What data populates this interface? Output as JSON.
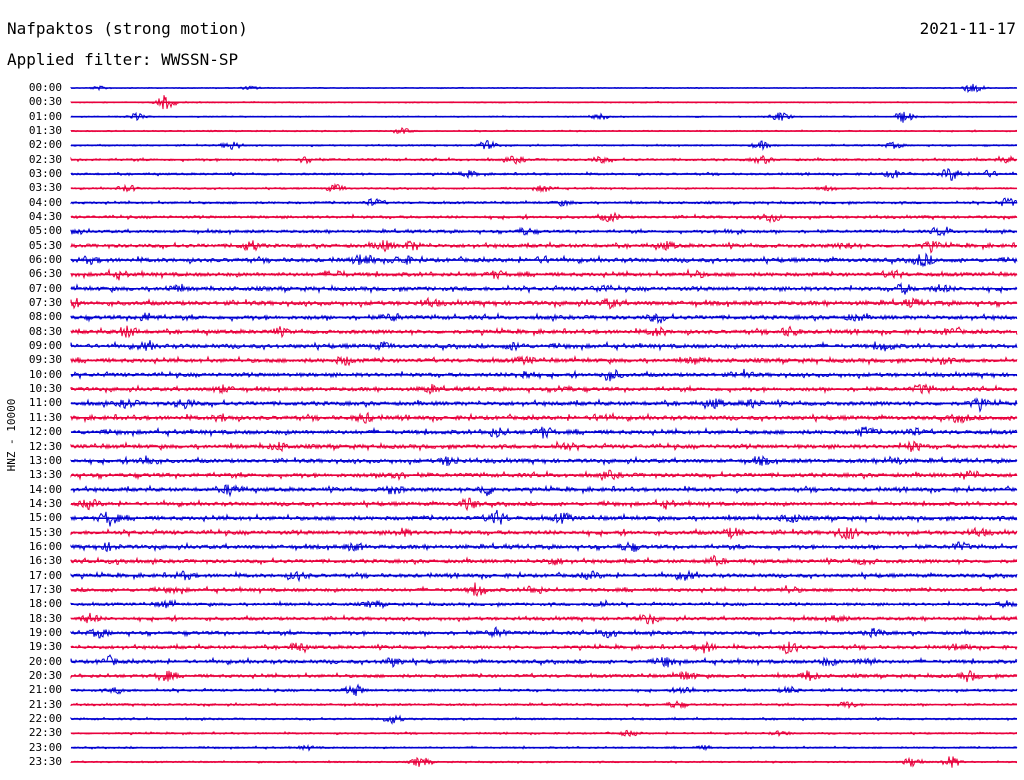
{
  "header": {
    "station": "Nafpaktos (strong motion)",
    "date": "2021-11-17",
    "filter": "Applied filter: WWSSN-SP"
  },
  "chart_data": {
    "type": "line",
    "channel_label": "HNZ - 10000",
    "trace_colors": [
      "#0000d0",
      "#e8003c"
    ],
    "rows": [
      "00:00",
      "00:30",
      "01:00",
      "01:30",
      "02:00",
      "02:30",
      "03:00",
      "03:30",
      "04:00",
      "04:30",
      "05:00",
      "05:30",
      "06:00",
      "06:30",
      "07:00",
      "07:30",
      "08:00",
      "08:30",
      "09:00",
      "09:30",
      "10:00",
      "10:30",
      "11:00",
      "11:30",
      "12:00",
      "12:30",
      "13:00",
      "13:30",
      "14:00",
      "14:30",
      "15:00",
      "15:30",
      "16:00",
      "16:30",
      "17:00",
      "17:30",
      "18:00",
      "18:30",
      "19:00",
      "19:30",
      "20:00",
      "20:30",
      "21:00",
      "21:30",
      "22:00",
      "22:30",
      "23:00",
      "23:30"
    ],
    "noise_level": [
      0.1,
      0.15,
      0.15,
      0.2,
      0.25,
      0.45,
      0.4,
      0.3,
      0.45,
      0.55,
      0.6,
      0.8,
      0.9,
      0.85,
      0.9,
      0.95,
      0.9,
      0.85,
      0.9,
      0.9,
      0.85,
      0.8,
      0.9,
      0.9,
      0.9,
      0.9,
      0.85,
      0.9,
      0.85,
      0.8,
      0.9,
      0.9,
      0.85,
      0.8,
      0.8,
      0.75,
      0.6,
      0.7,
      0.75,
      0.7,
      0.8,
      0.7,
      0.5,
      0.4,
      0.35,
      0.3,
      0.3,
      0.25
    ],
    "events": [
      [
        [
          0.03,
          0.3
        ],
        [
          0.19,
          0.3
        ],
        [
          0.95,
          0.7
        ],
        [
          0.96,
          0.4
        ]
      ],
      [
        [
          0.1,
          1.4
        ]
      ],
      [
        [
          0.07,
          0.6
        ],
        [
          0.56,
          0.5
        ],
        [
          0.75,
          0.9
        ],
        [
          0.88,
          1.1
        ]
      ],
      [
        [
          0.35,
          0.5
        ]
      ],
      [
        [
          0.17,
          0.8
        ],
        [
          0.44,
          0.8
        ],
        [
          0.73,
          0.7
        ],
        [
          0.87,
          0.5
        ]
      ],
      [
        [
          0.25,
          0.6
        ],
        [
          0.47,
          0.6
        ],
        [
          0.56,
          0.5
        ],
        [
          0.73,
          0.6
        ],
        [
          0.99,
          0.5
        ]
      ],
      [
        [
          0.42,
          0.5
        ],
        [
          0.87,
          0.7
        ],
        [
          0.93,
          1.2
        ],
        [
          0.97,
          0.6
        ]
      ],
      [
        [
          0.06,
          0.6
        ],
        [
          0.28,
          0.7
        ],
        [
          0.5,
          0.6
        ],
        [
          0.8,
          0.4
        ]
      ],
      [
        [
          0.32,
          0.7
        ],
        [
          0.52,
          0.4
        ],
        [
          0.99,
          0.8
        ]
      ],
      [
        [
          0.57,
          0.8
        ],
        [
          0.74,
          0.9
        ]
      ],
      [
        [
          0.0,
          0.6
        ],
        [
          0.48,
          0.6
        ],
        [
          0.7,
          0.5
        ],
        [
          0.92,
          0.7
        ]
      ],
      [
        [
          0.19,
          0.9
        ],
        [
          0.33,
          0.9
        ],
        [
          0.36,
          0.8
        ],
        [
          0.63,
          0.6
        ],
        [
          0.82,
          0.5
        ],
        [
          0.91,
          0.7
        ]
      ],
      [
        [
          0.02,
          0.5
        ],
        [
          0.31,
          1.0
        ],
        [
          0.35,
          0.8
        ],
        [
          0.5,
          0.5
        ],
        [
          0.9,
          1.1
        ]
      ],
      [
        [
          0.05,
          0.5
        ],
        [
          0.28,
          0.6
        ],
        [
          0.45,
          0.6
        ],
        [
          0.66,
          0.5
        ],
        [
          0.87,
          0.6
        ]
      ],
      [
        [
          0.11,
          0.5
        ],
        [
          0.56,
          0.5
        ],
        [
          0.88,
          0.8
        ],
        [
          0.92,
          0.6
        ]
      ],
      [
        [
          0.0,
          0.5
        ],
        [
          0.38,
          0.6
        ],
        [
          0.57,
          0.7
        ],
        [
          0.89,
          0.6
        ]
      ],
      [
        [
          0.08,
          0.7
        ],
        [
          0.34,
          0.6
        ],
        [
          0.62,
          0.7
        ],
        [
          0.83,
          0.5
        ]
      ],
      [
        [
          0.06,
          1.0
        ],
        [
          0.22,
          0.5
        ],
        [
          0.62,
          0.7
        ],
        [
          0.76,
          0.8
        ],
        [
          0.93,
          0.6
        ]
      ],
      [
        [
          0.08,
          0.6
        ],
        [
          0.33,
          0.5
        ],
        [
          0.47,
          0.6
        ],
        [
          0.86,
          0.7
        ]
      ],
      [
        [
          0.29,
          0.7
        ],
        [
          0.48,
          0.6
        ],
        [
          0.66,
          0.5
        ],
        [
          0.92,
          0.5
        ]
      ],
      [
        [
          0.48,
          0.7
        ],
        [
          0.57,
          1.0
        ],
        [
          0.71,
          0.5
        ]
      ],
      [
        [
          0.16,
          0.6
        ],
        [
          0.38,
          0.6
        ],
        [
          0.52,
          0.5
        ],
        [
          0.9,
          0.8
        ]
      ],
      [
        [
          0.06,
          0.7
        ],
        [
          0.12,
          0.9
        ],
        [
          0.68,
          0.7
        ],
        [
          0.72,
          0.6
        ],
        [
          0.96,
          0.8
        ]
      ],
      [
        [
          0.16,
          0.6
        ],
        [
          0.31,
          0.8
        ],
        [
          0.56,
          0.6
        ],
        [
          0.94,
          0.7
        ]
      ],
      [
        [
          0.45,
          0.8
        ],
        [
          0.5,
          0.9
        ],
        [
          0.84,
          0.8
        ],
        [
          0.89,
          0.7
        ]
      ],
      [
        [
          0.22,
          0.7
        ],
        [
          0.52,
          0.6
        ],
        [
          0.89,
          0.8
        ]
      ],
      [
        [
          0.08,
          0.9
        ],
        [
          0.4,
          0.8
        ],
        [
          0.73,
          0.6
        ],
        [
          0.87,
          0.7
        ]
      ],
      [
        [
          0.34,
          0.8
        ],
        [
          0.57,
          0.6
        ],
        [
          0.95,
          0.8
        ]
      ],
      [
        [
          0.17,
          1.0
        ],
        [
          0.34,
          0.8
        ],
        [
          0.44,
          1.0
        ]
      ],
      [
        [
          0.02,
          0.8
        ],
        [
          0.42,
          1.0
        ],
        [
          0.63,
          0.5
        ]
      ],
      [
        [
          0.04,
          1.3
        ],
        [
          0.45,
          1.3
        ],
        [
          0.52,
          0.8
        ],
        [
          0.76,
          0.8
        ]
      ],
      [
        [
          0.35,
          0.6
        ],
        [
          0.7,
          0.8
        ],
        [
          0.82,
          1.2
        ],
        [
          0.96,
          0.6
        ]
      ],
      [
        [
          0.04,
          0.6
        ],
        [
          0.3,
          0.6
        ],
        [
          0.59,
          0.7
        ],
        [
          0.94,
          0.7
        ]
      ],
      [
        [
          0.05,
          0.5
        ],
        [
          0.51,
          0.6
        ],
        [
          0.68,
          0.6
        ],
        [
          0.84,
          0.5
        ]
      ],
      [
        [
          0.12,
          0.6
        ],
        [
          0.24,
          0.7
        ],
        [
          0.55,
          0.6
        ],
        [
          0.65,
          0.7
        ]
      ],
      [
        [
          0.11,
          0.5
        ],
        [
          0.43,
          1.1
        ],
        [
          0.49,
          0.7
        ],
        [
          0.76,
          0.5
        ]
      ],
      [
        [
          0.1,
          0.6
        ],
        [
          0.32,
          0.6
        ],
        [
          0.56,
          0.6
        ],
        [
          0.99,
          0.5
        ]
      ],
      [
        [
          0.02,
          0.8
        ],
        [
          0.61,
          0.8
        ],
        [
          0.81,
          0.5
        ]
      ],
      [
        [
          0.03,
          0.7
        ],
        [
          0.45,
          0.8
        ],
        [
          0.57,
          0.9
        ],
        [
          0.85,
          0.7
        ]
      ],
      [
        [
          0.24,
          0.8
        ],
        [
          0.67,
          0.9
        ],
        [
          0.76,
          1.0
        ],
        [
          0.94,
          0.5
        ]
      ],
      [
        [
          0.04,
          0.7
        ],
        [
          0.34,
          0.7
        ],
        [
          0.63,
          0.8
        ],
        [
          0.8,
          0.6
        ],
        [
          0.84,
          0.8
        ]
      ],
      [
        [
          0.1,
          0.9
        ],
        [
          0.65,
          0.8
        ],
        [
          0.78,
          0.8
        ],
        [
          0.95,
          0.8
        ]
      ],
      [
        [
          0.05,
          0.5
        ],
        [
          0.3,
          1.0
        ],
        [
          0.65,
          0.7
        ],
        [
          0.76,
          0.6
        ]
      ],
      [
        [
          0.64,
          0.6
        ],
        [
          0.82,
          0.6
        ]
      ],
      [
        [
          0.34,
          0.8
        ]
      ],
      [
        [
          0.59,
          0.5
        ],
        [
          0.75,
          0.4
        ]
      ],
      [
        [
          0.25,
          0.3
        ],
        [
          0.67,
          0.3
        ]
      ],
      [
        [
          0.37,
          1.0
        ],
        [
          0.89,
          0.9
        ],
        [
          0.93,
          1.1
        ]
      ]
    ]
  }
}
